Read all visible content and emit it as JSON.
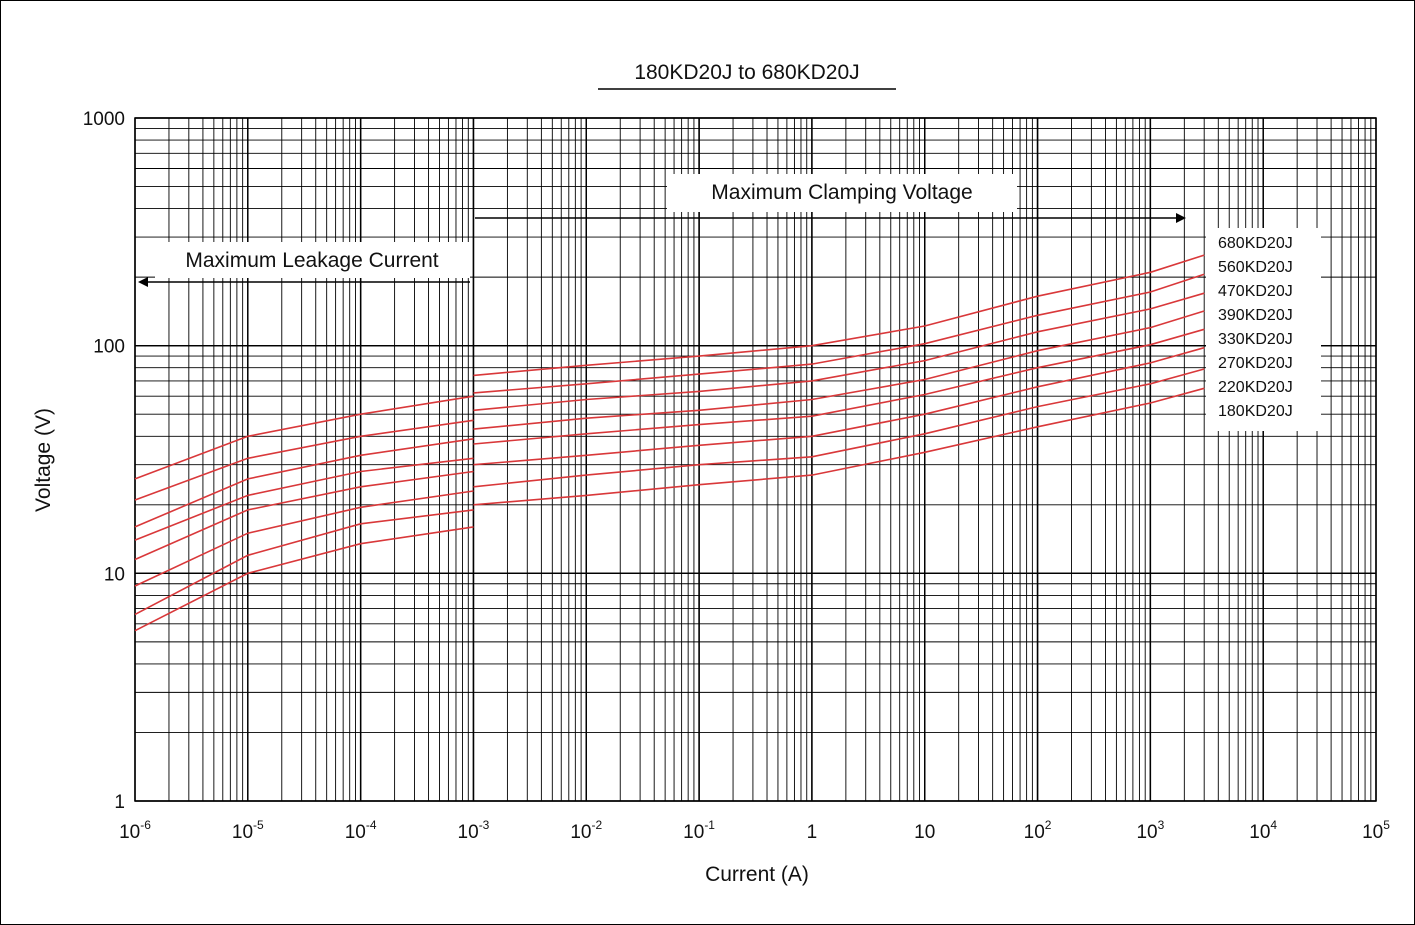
{
  "chart_data": {
    "type": "line",
    "title": "180KD20J to 680KD20J",
    "xlabel": "Current (A)",
    "ylabel": "Voltage (V)",
    "x_scale": "log",
    "y_scale": "log",
    "xlim": [
      1e-06,
      100000
    ],
    "ylim": [
      1,
      1000
    ],
    "grid": true,
    "x_ticks": [
      {
        "base": "10",
        "exp": "-6"
      },
      {
        "base": "10",
        "exp": "-5"
      },
      {
        "base": "10",
        "exp": "-4"
      },
      {
        "base": "10",
        "exp": "-3"
      },
      {
        "base": "10",
        "exp": "-2"
      },
      {
        "base": "10",
        "exp": "-1"
      },
      {
        "base": "1",
        "exp": ""
      },
      {
        "base": "10",
        "exp": ""
      },
      {
        "base": "10",
        "exp": "2"
      },
      {
        "base": "10",
        "exp": "3"
      },
      {
        "base": "10",
        "exp": "4"
      },
      {
        "base": "10",
        "exp": "5"
      }
    ],
    "y_ticks": [
      "1",
      "10",
      "100",
      "1000"
    ],
    "annotations": {
      "leakage": "Maximum Leakage Current",
      "clamping": "Maximum Clamping Voltage"
    },
    "series_color": "#d9383a",
    "series": [
      {
        "name": "680KD20J",
        "leakage": [
          [
            1e-06,
            26
          ],
          [
            1e-05,
            40
          ],
          [
            0.0001,
            50
          ],
          [
            0.001,
            60
          ]
        ],
        "clamp": [
          [
            0.001,
            74
          ],
          [
            0.01,
            82
          ],
          [
            0.1,
            90
          ],
          [
            1,
            100
          ],
          [
            10,
            122
          ],
          [
            100,
            165
          ],
          [
            1000,
            210
          ],
          [
            3000,
            250
          ]
        ]
      },
      {
        "name": "560KD20J",
        "leakage": [
          [
            1e-06,
            21
          ],
          [
            1e-05,
            32
          ],
          [
            0.0001,
            40
          ],
          [
            0.001,
            47
          ]
        ],
        "clamp": [
          [
            0.001,
            62
          ],
          [
            0.01,
            68
          ],
          [
            0.1,
            75
          ],
          [
            1,
            83
          ],
          [
            10,
            102
          ],
          [
            100,
            136
          ],
          [
            1000,
            172
          ],
          [
            3000,
            206
          ]
        ]
      },
      {
        "name": "470KD20J",
        "leakage": [
          [
            1e-06,
            16
          ],
          [
            1e-05,
            26
          ],
          [
            0.0001,
            33
          ],
          [
            0.001,
            39
          ]
        ],
        "clamp": [
          [
            0.001,
            52
          ],
          [
            0.01,
            58
          ],
          [
            0.1,
            63
          ],
          [
            1,
            70
          ],
          [
            10,
            86
          ],
          [
            100,
            115
          ],
          [
            1000,
            145
          ],
          [
            3000,
            170
          ]
        ]
      },
      {
        "name": "390KD20J",
        "leakage": [
          [
            1e-06,
            14
          ],
          [
            1e-05,
            22
          ],
          [
            0.0001,
            28
          ],
          [
            0.001,
            32
          ]
        ],
        "clamp": [
          [
            0.001,
            43
          ],
          [
            0.01,
            48
          ],
          [
            0.1,
            52
          ],
          [
            1,
            58
          ],
          [
            10,
            71
          ],
          [
            100,
            95
          ],
          [
            1000,
            120
          ],
          [
            3000,
            142
          ]
        ]
      },
      {
        "name": "330KD20J",
        "leakage": [
          [
            1e-06,
            11.5
          ],
          [
            1e-05,
            19
          ],
          [
            0.0001,
            24
          ],
          [
            0.001,
            28
          ]
        ],
        "clamp": [
          [
            0.001,
            37
          ],
          [
            0.01,
            41
          ],
          [
            0.1,
            45
          ],
          [
            1,
            49
          ],
          [
            10,
            61
          ],
          [
            100,
            80
          ],
          [
            1000,
            101
          ],
          [
            3000,
            118
          ]
        ]
      },
      {
        "name": "270KD20J",
        "leakage": [
          [
            1e-06,
            8.8
          ],
          [
            1e-05,
            15
          ],
          [
            0.0001,
            19.5
          ],
          [
            0.001,
            23
          ]
        ],
        "clamp": [
          [
            0.001,
            30
          ],
          [
            0.01,
            33
          ],
          [
            0.1,
            36.5
          ],
          [
            1,
            40
          ],
          [
            10,
            50
          ],
          [
            100,
            66
          ],
          [
            1000,
            84
          ],
          [
            3000,
            98
          ]
        ]
      },
      {
        "name": "220KD20J",
        "leakage": [
          [
            1e-06,
            6.6
          ],
          [
            1e-05,
            12
          ],
          [
            0.0001,
            16.5
          ],
          [
            0.001,
            19
          ]
        ],
        "clamp": [
          [
            0.001,
            24
          ],
          [
            0.01,
            27
          ],
          [
            0.1,
            30
          ],
          [
            1,
            32.5
          ],
          [
            10,
            41
          ],
          [
            100,
            54
          ],
          [
            1000,
            68
          ],
          [
            3000,
            79
          ]
        ]
      },
      {
        "name": "180KD20J",
        "leakage": [
          [
            1e-06,
            5.6
          ],
          [
            1e-05,
            10
          ],
          [
            0.0001,
            13.5
          ],
          [
            0.001,
            16
          ]
        ],
        "clamp": [
          [
            0.001,
            20
          ],
          [
            0.01,
            22
          ],
          [
            0.1,
            24.5
          ],
          [
            1,
            27
          ],
          [
            10,
            34
          ],
          [
            100,
            44
          ],
          [
            1000,
            56
          ],
          [
            3000,
            65
          ]
        ]
      }
    ]
  }
}
